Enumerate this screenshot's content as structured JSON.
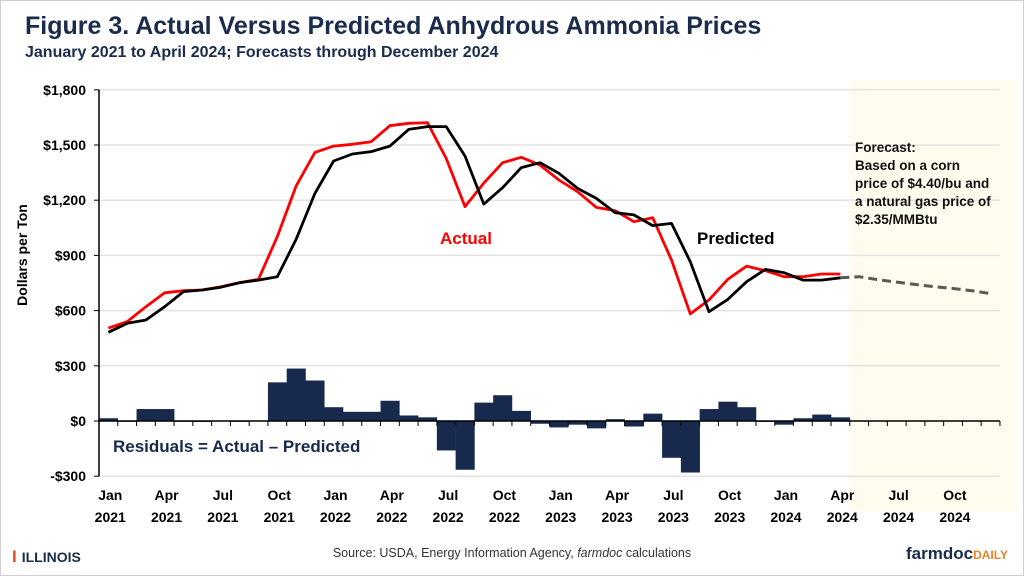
{
  "title": "Figure 3. Actual Versus Predicted Anhydrous Ammonia Prices",
  "subtitle": "January 2021 to April 2024; Forecasts through December 2024",
  "source_prefix": "Source:  USDA, Energy Information Agency, ",
  "source_italic": "farmdoc",
  "source_suffix": " calculations",
  "logo_left": "ILLINOIS",
  "logo_right_main": "farmdoc",
  "logo_right_accent": "DAILY",
  "chart_data": {
    "type": "line",
    "title": "Figure 3. Actual Versus Predicted Anhydrous Ammonia Prices",
    "ylabel": "Dollars per Ton",
    "ylim": [
      -300,
      1800
    ],
    "yticks": [
      -300,
      0,
      300,
      600,
      900,
      1200,
      1500,
      1800
    ],
    "ytick_labels": [
      "-$300",
      "$0",
      "$300",
      "$600",
      "$900",
      "$1,200",
      "$1,500",
      "$1,800"
    ],
    "grid": true,
    "x_start": "2021-01",
    "x_end": "2024-12",
    "xtick_labels": [
      [
        "Jan",
        "2021"
      ],
      [
        "Apr",
        "2021"
      ],
      [
        "Jul",
        "2021"
      ],
      [
        "Oct",
        "2021"
      ],
      [
        "Jan",
        "2022"
      ],
      [
        "Apr",
        "2022"
      ],
      [
        "Jul",
        "2022"
      ],
      [
        "Oct",
        "2022"
      ],
      [
        "Jan",
        "2023"
      ],
      [
        "Apr",
        "2023"
      ],
      [
        "Jul",
        "2023"
      ],
      [
        "Oct",
        "2023"
      ],
      [
        "Jan",
        "2024"
      ],
      [
        "Apr",
        "2024"
      ],
      [
        "Jul",
        "2024"
      ],
      [
        "Oct",
        "2024"
      ]
    ],
    "series": [
      {
        "name": "Actual",
        "color": "#ff0000",
        "kind": "line",
        "values": [
          505,
          540,
          621,
          697,
          708,
          712,
          730,
          752,
          770,
          1002,
          1277,
          1460,
          1494,
          1504,
          1518,
          1605,
          1618,
          1621,
          1427,
          1165,
          1293,
          1404,
          1433,
          1391,
          1310,
          1246,
          1161,
          1143,
          1083,
          1105,
          875,
          582,
          658,
          770,
          842,
          817,
          784,
          784,
          799,
          799
        ]
      },
      {
        "name": "Predicted",
        "color": "#000000",
        "kind": "line",
        "values": [
          482,
          531,
          549,
          621,
          703,
          712,
          727,
          752,
          766,
          784,
          987,
          1237,
          1413,
          1451,
          1464,
          1494,
          1585,
          1600,
          1600,
          1440,
          1179,
          1268,
          1377,
          1404,
          1346,
          1264,
          1210,
          1132,
          1120,
          1062,
          1074,
          866,
          594,
          661,
          757,
          824,
          806,
          766,
          766,
          778
        ]
      },
      {
        "name": "Residuals = Actual – Predicted",
        "color": "#172a4d",
        "kind": "bar",
        "values": [
          15,
          0,
          65,
          65,
          0,
          -5,
          3,
          0,
          3,
          210,
          285,
          220,
          75,
          50,
          50,
          110,
          30,
          20,
          -160,
          -265,
          100,
          140,
          55,
          -15,
          -35,
          -20,
          -40,
          10,
          -30,
          40,
          -200,
          -280,
          65,
          105,
          75,
          -5,
          -20,
          15,
          35,
          20
        ]
      },
      {
        "kind": "forecast",
        "color": "#5a5a52",
        "start": "2024-04",
        "values": [
          778,
          784,
          768,
          755,
          742,
          730,
          720,
          708,
          692
        ]
      }
    ],
    "forecast_region": {
      "start": "2024-05",
      "end": "2024-12",
      "color": "#fffbee"
    },
    "annotations": {
      "actual": "Actual",
      "predicted": "Predicted",
      "residuals": "Residuals = Actual – Predicted",
      "forecast_lines": [
        "Forecast:",
        "Based on a corn",
        "price of $4.40/bu and",
        "a natural gas price of",
        "$2.35/MMBtu"
      ]
    }
  }
}
